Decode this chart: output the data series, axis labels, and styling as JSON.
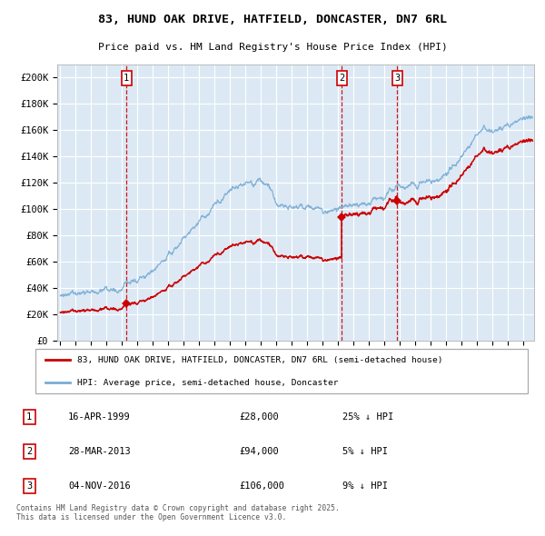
{
  "title1": "83, HUND OAK DRIVE, HATFIELD, DONCASTER, DN7 6RL",
  "title2": "Price paid vs. HM Land Registry's House Price Index (HPI)",
  "legend_label_red": "83, HUND OAK DRIVE, HATFIELD, DONCASTER, DN7 6RL (semi-detached house)",
  "legend_label_blue": "HPI: Average price, semi-detached house, Doncaster",
  "footer": "Contains HM Land Registry data © Crown copyright and database right 2025.\nThis data is licensed under the Open Government Licence v3.0.",
  "sale_markers": [
    {
      "label": "1",
      "date_x": 1999.29,
      "price": 28000,
      "date_str": "16-APR-1999",
      "price_str": "£28,000",
      "pct_str": "25% ↓ HPI"
    },
    {
      "label": "2",
      "date_x": 2013.24,
      "price": 94000,
      "date_str": "28-MAR-2013",
      "price_str": "£94,000",
      "pct_str": "5% ↓ HPI"
    },
    {
      "label": "3",
      "date_x": 2016.84,
      "price": 106000,
      "date_str": "04-NOV-2016",
      "price_str": "£106,000",
      "pct_str": "9% ↓ HPI"
    }
  ],
  "ylim": [
    0,
    210000
  ],
  "xlim_start": 1994.8,
  "xlim_end": 2025.7,
  "bg_color": "#dce9f5",
  "red_line_color": "#cc0000",
  "blue_line_color": "#7aadd4",
  "grid_color": "#ffffff",
  "vline_color": "#cc0000",
  "marker_color": "#cc0000",
  "yticks": [
    0,
    20000,
    40000,
    60000,
    80000,
    100000,
    120000,
    140000,
    160000,
    180000,
    200000
  ],
  "ytick_labels": [
    "£0",
    "£20K",
    "£40K",
    "£60K",
    "£80K",
    "£100K",
    "£120K",
    "£140K",
    "£160K",
    "£180K",
    "£200K"
  ]
}
